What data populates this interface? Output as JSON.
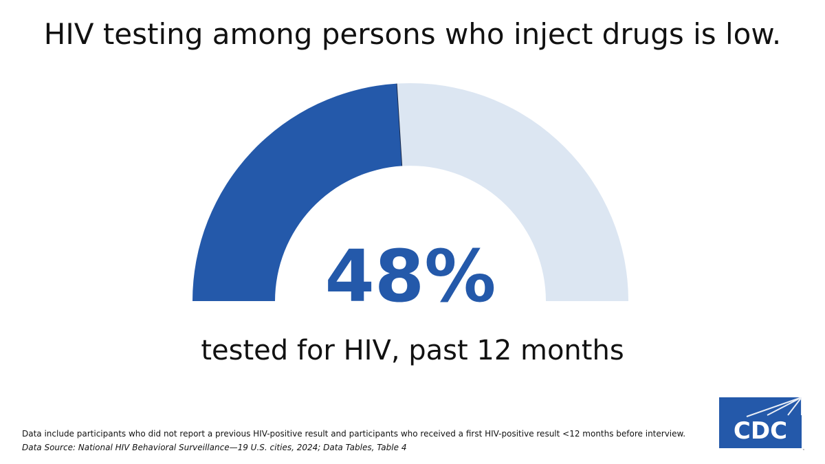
{
  "title": "HIV testing among persons who inject drugs is low.",
  "chart_data": {
    "type": "gauge",
    "value": 48,
    "max": 100,
    "value_label": "48%",
    "caption": "tested for HIV, past 12 months",
    "colors": {
      "fill": "#2459AA",
      "track": "#DCE6F2"
    }
  },
  "footnote": "Data include participants who did not report a previous HIV-positive result and participants who received a first HIV-positive result <12 months before interview.",
  "source": "Data Source: National HIV Behavioral Surveillance—19 U.S. cities, 2024; Data Tables, Table 4",
  "logo": {
    "text": "CDC",
    "color": "#2459AA"
  }
}
